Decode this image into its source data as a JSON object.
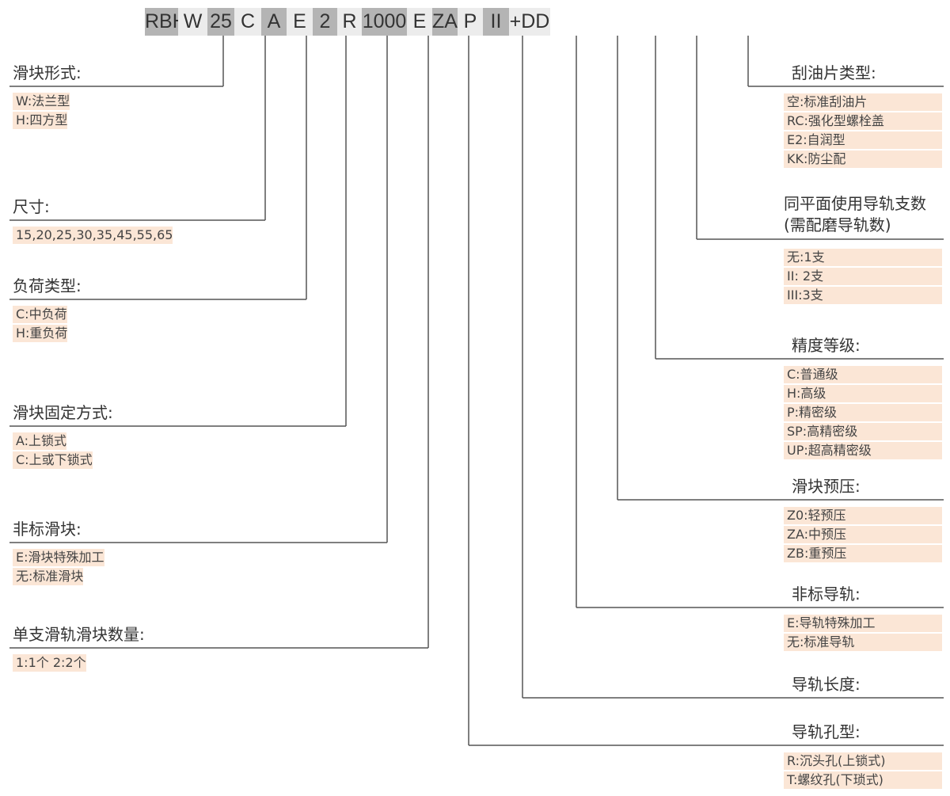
{
  "code": {
    "colors": {
      "dark": "#b4b4b4",
      "light": "#ececec"
    },
    "segments": [
      {
        "text": "RBH",
        "shade": "dark"
      },
      {
        "text": "W",
        "shade": "light"
      },
      {
        "text": "25",
        "shade": "dark"
      },
      {
        "text": "C",
        "shade": "light"
      },
      {
        "text": "A",
        "shade": "dark"
      },
      {
        "text": "E",
        "shade": "light"
      },
      {
        "text": "2",
        "shade": "dark"
      },
      {
        "text": "R",
        "shade": "light"
      },
      {
        "text": "1000",
        "shade": "dark"
      },
      {
        "text": "E",
        "shade": "light"
      },
      {
        "text": "ZA",
        "shade": "dark"
      },
      {
        "text": "P",
        "shade": "light"
      },
      {
        "text": "II",
        "shade": "dark"
      },
      {
        "text": "+DD",
        "shade": "light"
      }
    ]
  },
  "highlight_color": "#fbe6d6",
  "left_groups": [
    {
      "title": "滑块形式:",
      "items": [
        "W:法兰型",
        "H:四方型"
      ]
    },
    {
      "title": "尺寸:",
      "items": [
        "15,20,25,30,35,45,55,65"
      ]
    },
    {
      "title": "负荷类型:",
      "items": [
        "C:中负荷",
        "H:重负荷"
      ]
    },
    {
      "title": "滑块固定方式:",
      "items": [
        "A:上锁式",
        "C:上或下锁式"
      ]
    },
    {
      "title": "非标滑块:",
      "items": [
        "E:滑块特殊加工",
        "无:标准滑块"
      ]
    },
    {
      "title": "单支滑轨滑块数量:",
      "items": [
        "1:1个    2:2个"
      ]
    }
  ],
  "right_groups": [
    {
      "title": "刮油片类型:",
      "items": [
        "空:标准刮油片",
        "RC:强化型螺栓盖",
        "E2:自润型",
        "KK:防尘配"
      ]
    },
    {
      "title": "同平面使用导轨支数",
      "subtitle": "(需配磨导轨数)",
      "items": [
        "无:1支",
        "II: 2支",
        "III:3支"
      ]
    },
    {
      "title": "精度等级:",
      "items": [
        "C:普通级",
        "H:高级",
        "P:精密级",
        "SP:高精密级",
        "UP:超高精密级"
      ]
    },
    {
      "title": "滑块预压:",
      "items": [
        "Z0:轻预压",
        "ZA:中预压",
        "ZB:重预压"
      ]
    },
    {
      "title": "非标导轨:",
      "items": [
        "E:导轨特殊加工",
        "无:标准导轨"
      ]
    },
    {
      "title": "导轨长度:",
      "items": []
    },
    {
      "title": "导轨孔型:",
      "items": [
        "R:沉头孔(上锁式)",
        "T:螺纹孔(下琐式)"
      ]
    }
  ]
}
